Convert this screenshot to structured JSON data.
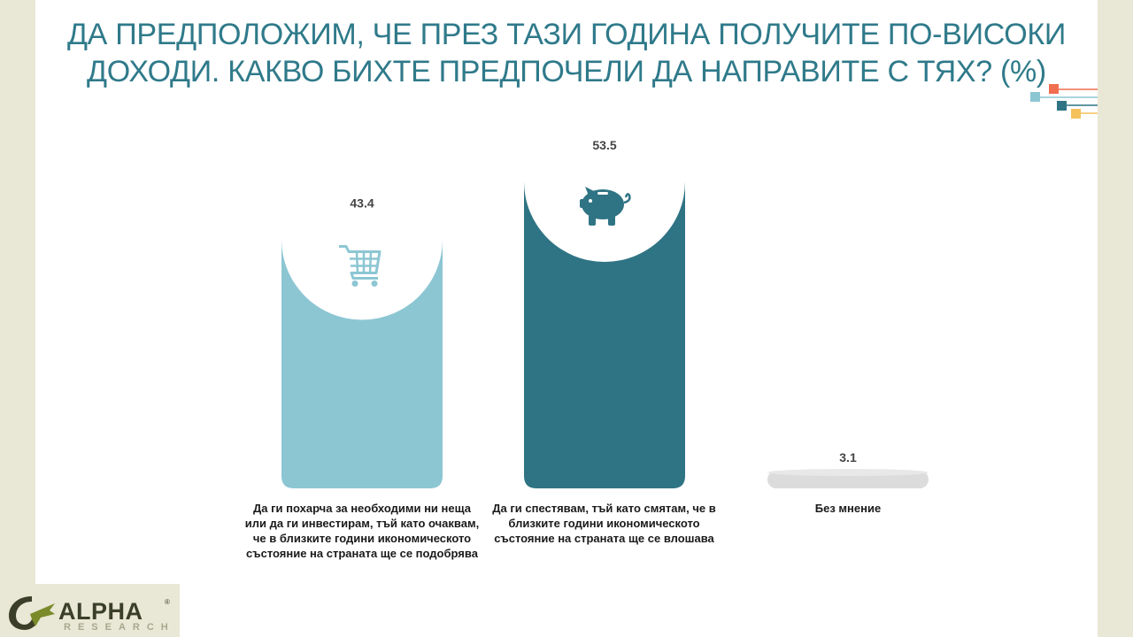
{
  "title_line1": "ДА ПРЕДПОЛОЖИМ, ЧЕ ПРЕЗ ТАЗИ ГОДИНА ПОЛУЧИТЕ ПО-ВИСОКИ",
  "title_line2": "ДОХОДИ. КАКВО БИХТЕ ПРЕДПОЧЕЛИ ДА НАПРАВИТЕ С ТЯХ? (%)",
  "chart_data": {
    "type": "bar",
    "title": "ДА ПРЕДПОЛОЖИМ, ЧЕ ПРЕЗ ТАЗИ ГОДИНА ПОЛУЧИТЕ ПО-ВИСОКИ ДОХОДИ. КАКВО БИХТЕ ПРЕДПОЧЕЛИ ДА НАПРАВИТЕ С ТЯХ? (%)",
    "categories": [
      "Да ги похарча за необходими ни неща или да ги инвестирам, тъй като очаквам, че в близките години икономическото състояние на страната ще се подобрява",
      "Да ги спестявам, тъй като смятам, че в близките години икономическото състояние на страната ще се влошава",
      "Без мнение"
    ],
    "values": [
      43.4,
      53.5,
      3.1
    ],
    "value_labels": [
      "43.4",
      "53.5",
      "3.1"
    ],
    "colors": [
      "#8cc6d3",
      "#2f7484",
      "#dcdcdc"
    ],
    "icons": [
      "shopping-cart-icon",
      "piggy-bank-icon",
      ""
    ],
    "ylim": [
      0,
      60
    ],
    "grid": false,
    "legend": "none"
  },
  "labels": {
    "cat1_lines": [
      "Да ги похарча за необходими ни неща",
      "или да ги инвестирам, тъй като очаквам,",
      "че в близките години икономическото",
      "състояние на страната ще се подобрява"
    ],
    "cat2_lines": [
      "Да ги спестявам, тъй като смятам, че в",
      "близките години икономическото",
      "състояние на страната ще се влошава"
    ],
    "cat3_lines": [
      "Без мнение"
    ]
  },
  "logo": {
    "word": "ALPHA",
    "sub": "RESEARCH",
    "reg": "®"
  },
  "deco_colors": [
    "#8cc6d3",
    "#ef6f50",
    "#2f7484",
    "#f4c15d"
  ]
}
